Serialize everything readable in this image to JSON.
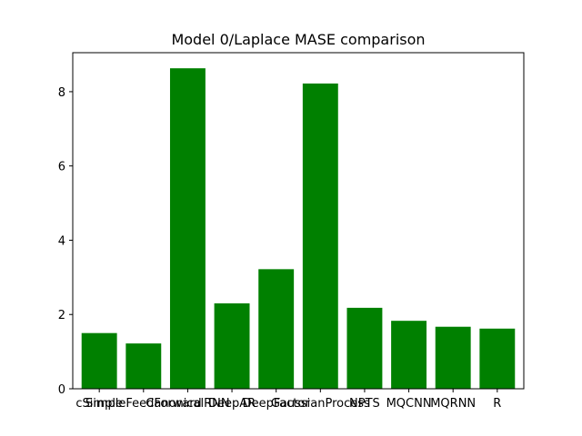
{
  "chart_data": {
    "type": "bar",
    "title": "Model 0/Laplace MASE comparison",
    "xlabel": "",
    "ylabel": "",
    "categories": [
      "cSimple",
      "SimpleFeedForward",
      "CanonicalRNN",
      "DeepAR",
      "DeepFactor",
      "GaussianProcess",
      "NPTS",
      "MQCNN",
      "MQRNN",
      "R"
    ],
    "values": [
      1.5,
      1.22,
      8.63,
      2.3,
      3.22,
      8.22,
      2.18,
      1.83,
      1.67,
      1.62
    ],
    "ylim": [
      0,
      9.05
    ],
    "yticks": [
      0,
      2,
      4,
      6,
      8
    ],
    "bar_color": "#008000",
    "grid": false,
    "legend": "none"
  }
}
